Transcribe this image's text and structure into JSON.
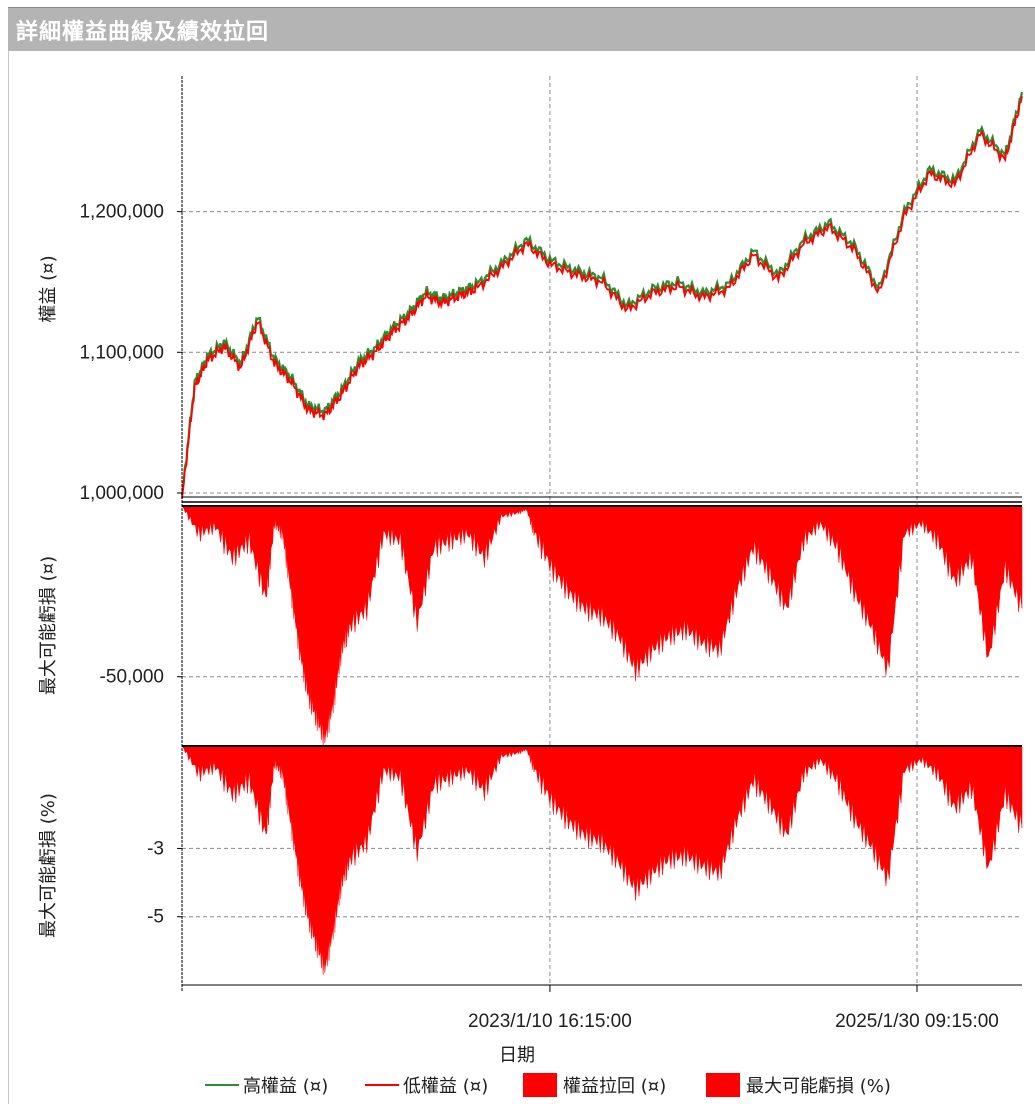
{
  "window": {
    "title": "詳細權益曲線及績效拉回"
  },
  "colors": {
    "high_equity": "#2e8b2e",
    "low_equity": "#ff0000",
    "drawdown_fill": "#ff0000",
    "grid": "#8c8c8c"
  },
  "chart_data": [
    {
      "type": "line",
      "panel": "equity",
      "ylabel": "權益 (¤)",
      "ylim": [
        995000,
        1295000
      ],
      "yticks": [
        1000000,
        1100000,
        1200000
      ],
      "ytick_labels": [
        "1,000,000",
        "1,100,000",
        "1,200,000"
      ],
      "x_points": [
        0,
        1.5,
        3,
        5,
        7,
        9,
        11,
        13,
        15,
        17,
        19,
        21,
        23,
        25,
        27,
        29,
        31,
        33,
        35,
        38,
        41,
        44,
        47,
        50,
        53,
        56,
        59,
        62,
        65,
        68,
        71,
        74,
        77,
        80,
        83,
        86,
        89,
        92,
        95,
        98,
        100
      ],
      "series": [
        {
          "name": "高權益 (¤)",
          "values": [
            998000,
            1078000,
            1097000,
            1107000,
            1092000,
            1125000,
            1095000,
            1082000,
            1062000,
            1058000,
            1073000,
            1093000,
            1103000,
            1117000,
            1128000,
            1143000,
            1138000,
            1143000,
            1148000,
            1163000,
            1180000,
            1165000,
            1158000,
            1153000,
            1133000,
            1145000,
            1150000,
            1142000,
            1148000,
            1172000,
            1155000,
            1180000,
            1192000,
            1176000,
            1145000,
            1200000,
            1230000,
            1222000,
            1258000,
            1240000,
            1285000
          ]
        },
        {
          "name": "低權益 (¤)",
          "values": [
            996000,
            1075000,
            1094000,
            1104000,
            1089000,
            1122000,
            1092000,
            1079000,
            1059000,
            1055000,
            1070000,
            1090000,
            1100000,
            1114000,
            1125000,
            1140000,
            1135000,
            1140000,
            1145000,
            1160000,
            1177000,
            1162000,
            1155000,
            1150000,
            1130000,
            1142000,
            1147000,
            1139000,
            1145000,
            1169000,
            1152000,
            1177000,
            1189000,
            1173000,
            1142000,
            1197000,
            1227000,
            1219000,
            1255000,
            1237000,
            1282000
          ]
        }
      ]
    },
    {
      "type": "area",
      "panel": "drawdown",
      "ylabel": "最大可能虧損 (¤)",
      "ylim": [
        -70000,
        0
      ],
      "yticks": [
        -50000
      ],
      "ytick_labels": [
        "-50,000"
      ],
      "x_points": [
        0,
        2,
        4,
        6,
        8,
        10,
        11,
        12,
        13,
        14,
        15,
        16,
        17,
        18,
        19,
        20,
        22,
        24,
        26,
        28,
        30,
        32,
        34,
        36,
        38,
        40,
        41,
        42,
        44,
        46,
        48,
        50,
        52,
        54,
        56,
        58,
        60,
        62,
        64,
        66,
        68,
        70,
        72,
        74,
        76,
        78,
        80,
        82,
        84,
        86,
        88,
        90,
        92,
        94,
        96,
        98,
        100
      ],
      "series": [
        {
          "name": "權益拉回 (¤)",
          "values": [
            0,
            -8000,
            -6000,
            -15000,
            -10000,
            -27000,
            -5000,
            -8000,
            -25000,
            -42000,
            -55000,
            -62000,
            -68000,
            -58000,
            -42000,
            -35000,
            -30000,
            -8000,
            -10000,
            -34000,
            -12000,
            -10000,
            -8000,
            -15000,
            -3000,
            -2000,
            -1000,
            -8000,
            -18000,
            -25000,
            -30000,
            -32000,
            -38000,
            -48000,
            -42000,
            -38000,
            -36000,
            -40000,
            -42000,
            -25000,
            -12000,
            -20000,
            -30000,
            -10000,
            -5000,
            -12000,
            -25000,
            -35000,
            -48000,
            -8000,
            -5000,
            -10000,
            -22000,
            -15000,
            -45000,
            -18000,
            -30000
          ]
        }
      ]
    },
    {
      "type": "area",
      "panel": "drawdown_pct",
      "ylabel": "最大可能虧損 (%)",
      "ylim": [
        -7,
        0
      ],
      "yticks": [
        -3,
        -5
      ],
      "ytick_labels": [
        "-3",
        "-5"
      ],
      "x_points": [
        0,
        2,
        4,
        6,
        8,
        10,
        11,
        12,
        13,
        14,
        15,
        16,
        17,
        18,
        19,
        20,
        22,
        24,
        26,
        28,
        30,
        32,
        34,
        36,
        38,
        40,
        41,
        42,
        44,
        46,
        48,
        50,
        52,
        54,
        56,
        58,
        60,
        62,
        64,
        66,
        68,
        70,
        72,
        74,
        76,
        78,
        80,
        82,
        84,
        86,
        88,
        90,
        92,
        94,
        96,
        98,
        100
      ],
      "series": [
        {
          "name": "最大可能虧損 (%)",
          "values": [
            0,
            -0.8,
            -0.6,
            -1.4,
            -1.0,
            -2.6,
            -0.5,
            -0.8,
            -2.3,
            -3.8,
            -5.0,
            -5.8,
            -6.5,
            -5.4,
            -4.0,
            -3.3,
            -2.8,
            -0.7,
            -0.9,
            -3.1,
            -1.1,
            -0.9,
            -0.7,
            -1.3,
            -0.3,
            -0.2,
            -0.1,
            -0.7,
            -1.6,
            -2.2,
            -2.6,
            -2.8,
            -3.4,
            -4.2,
            -3.7,
            -3.3,
            -3.2,
            -3.5,
            -3.7,
            -2.2,
            -1.0,
            -1.7,
            -2.6,
            -0.8,
            -0.4,
            -1.0,
            -2.1,
            -2.9,
            -3.9,
            -0.7,
            -0.4,
            -0.8,
            -1.8,
            -1.2,
            -3.6,
            -1.4,
            -2.4
          ]
        }
      ]
    }
  ],
  "x_axis": {
    "label": "日期",
    "ticks": [
      {
        "label": "2023/1/10 16:15:00",
        "pos": 43.8
      },
      {
        "label": "2025/1/30 09:15:00",
        "pos": 87.5
      }
    ]
  },
  "legend": [
    {
      "label": "高權益 (¤)",
      "kind": "line",
      "color": "#2e8b2e"
    },
    {
      "label": "低權益 (¤)",
      "kind": "line",
      "color": "#ff0000"
    },
    {
      "label": "權益拉回 (¤)",
      "kind": "box",
      "color": "#ff0000"
    },
    {
      "label": "最大可能虧損 (%)",
      "kind": "box",
      "color": "#ff0000"
    }
  ]
}
